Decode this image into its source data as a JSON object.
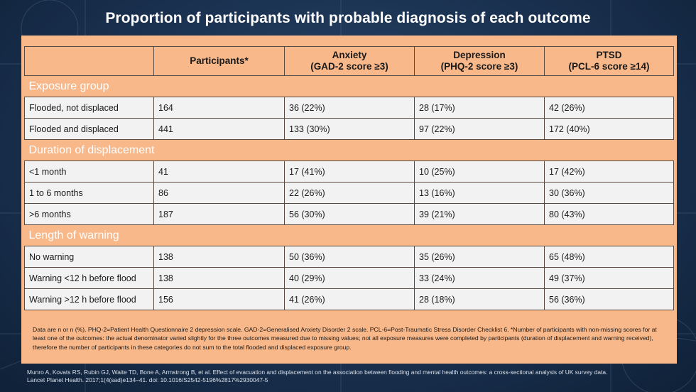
{
  "title": "Proportion of participants with probable diagnosis of each outcome",
  "table": {
    "headers": [
      {
        "line1": "",
        "line2": ""
      },
      {
        "line1": "Participants*",
        "line2": ""
      },
      {
        "line1": "Anxiety",
        "line2": "(GAD-2 score ≥3)"
      },
      {
        "line1": "Depression",
        "line2": "(PHQ-2 score ≥3)"
      },
      {
        "line1": "PTSD",
        "line2": "(PCL-6 score ≥14)"
      }
    ],
    "groups": [
      {
        "label": "Exposure group",
        "rows": [
          [
            "Flooded, not displaced",
            "164",
            "36 (22%)",
            "28 (17%)",
            "42 (26%)"
          ],
          [
            "Flooded and displaced",
            "441",
            "133 (30%)",
            "97 (22%)",
            "172 (40%)"
          ]
        ]
      },
      {
        "label": "Duration of displacement",
        "rows": [
          [
            "<1 month",
            "41",
            "17 (41%)",
            "10 (25%)",
            "17 (42%)"
          ],
          [
            "1 to 6 months",
            "86",
            "22 (26%)",
            "13 (16%)",
            "30 (36%)"
          ],
          [
            ">6 months",
            "187",
            "56 (30%)",
            "39 (21%)",
            "80 (43%)"
          ]
        ]
      },
      {
        "label": "Length of warning",
        "rows": [
          [
            "No warning",
            "138",
            "50 (36%)",
            "35 (26%)",
            "65 (48%)"
          ],
          [
            "Warning <12 h before flood",
            "138",
            "40 (29%)",
            "33 (24%)",
            "49 (37%)"
          ],
          [
            "Warning >12 h before flood",
            "156",
            "41 (26%)",
            "28 (18%)",
            "56 (36%)"
          ]
        ]
      }
    ]
  },
  "notes": "Data are n or n (%). PHQ-2=Patient Health Questionnaire 2 depression scale. GAD-2=Generalised Anxiety Disorder 2 scale. PCL-6=Post-Traumatic Stress Disorder Checklist 6. *Number of participants with non-missing scores for at least one of the outcomes: the actual denominator varied slightly for the three outcomes measured due to missing values; not all exposure measures were completed by participants (duration of displacement and warning received), therefore the number of participants in these categories do not sum to the total flooded and displaced exposure group.",
  "citation": {
    "line1": "Munro A, Kovats RS, Rubin GJ, Waite TD, Bone A, Armstrong B, et al. Effect of evacuation and displacement on the association between flooding and mental health outcomes: a cross-sectional analysis of UK survey data.",
    "line2": "Lancet Planet Health. 2017;1(4(sad)e134–41. doi: 10.1016/S2542-5196%2817%2930047-5"
  },
  "colors": {
    "frame": "#f8b88a",
    "background": "#1a3150",
    "cell": "#f2f2f2"
  }
}
